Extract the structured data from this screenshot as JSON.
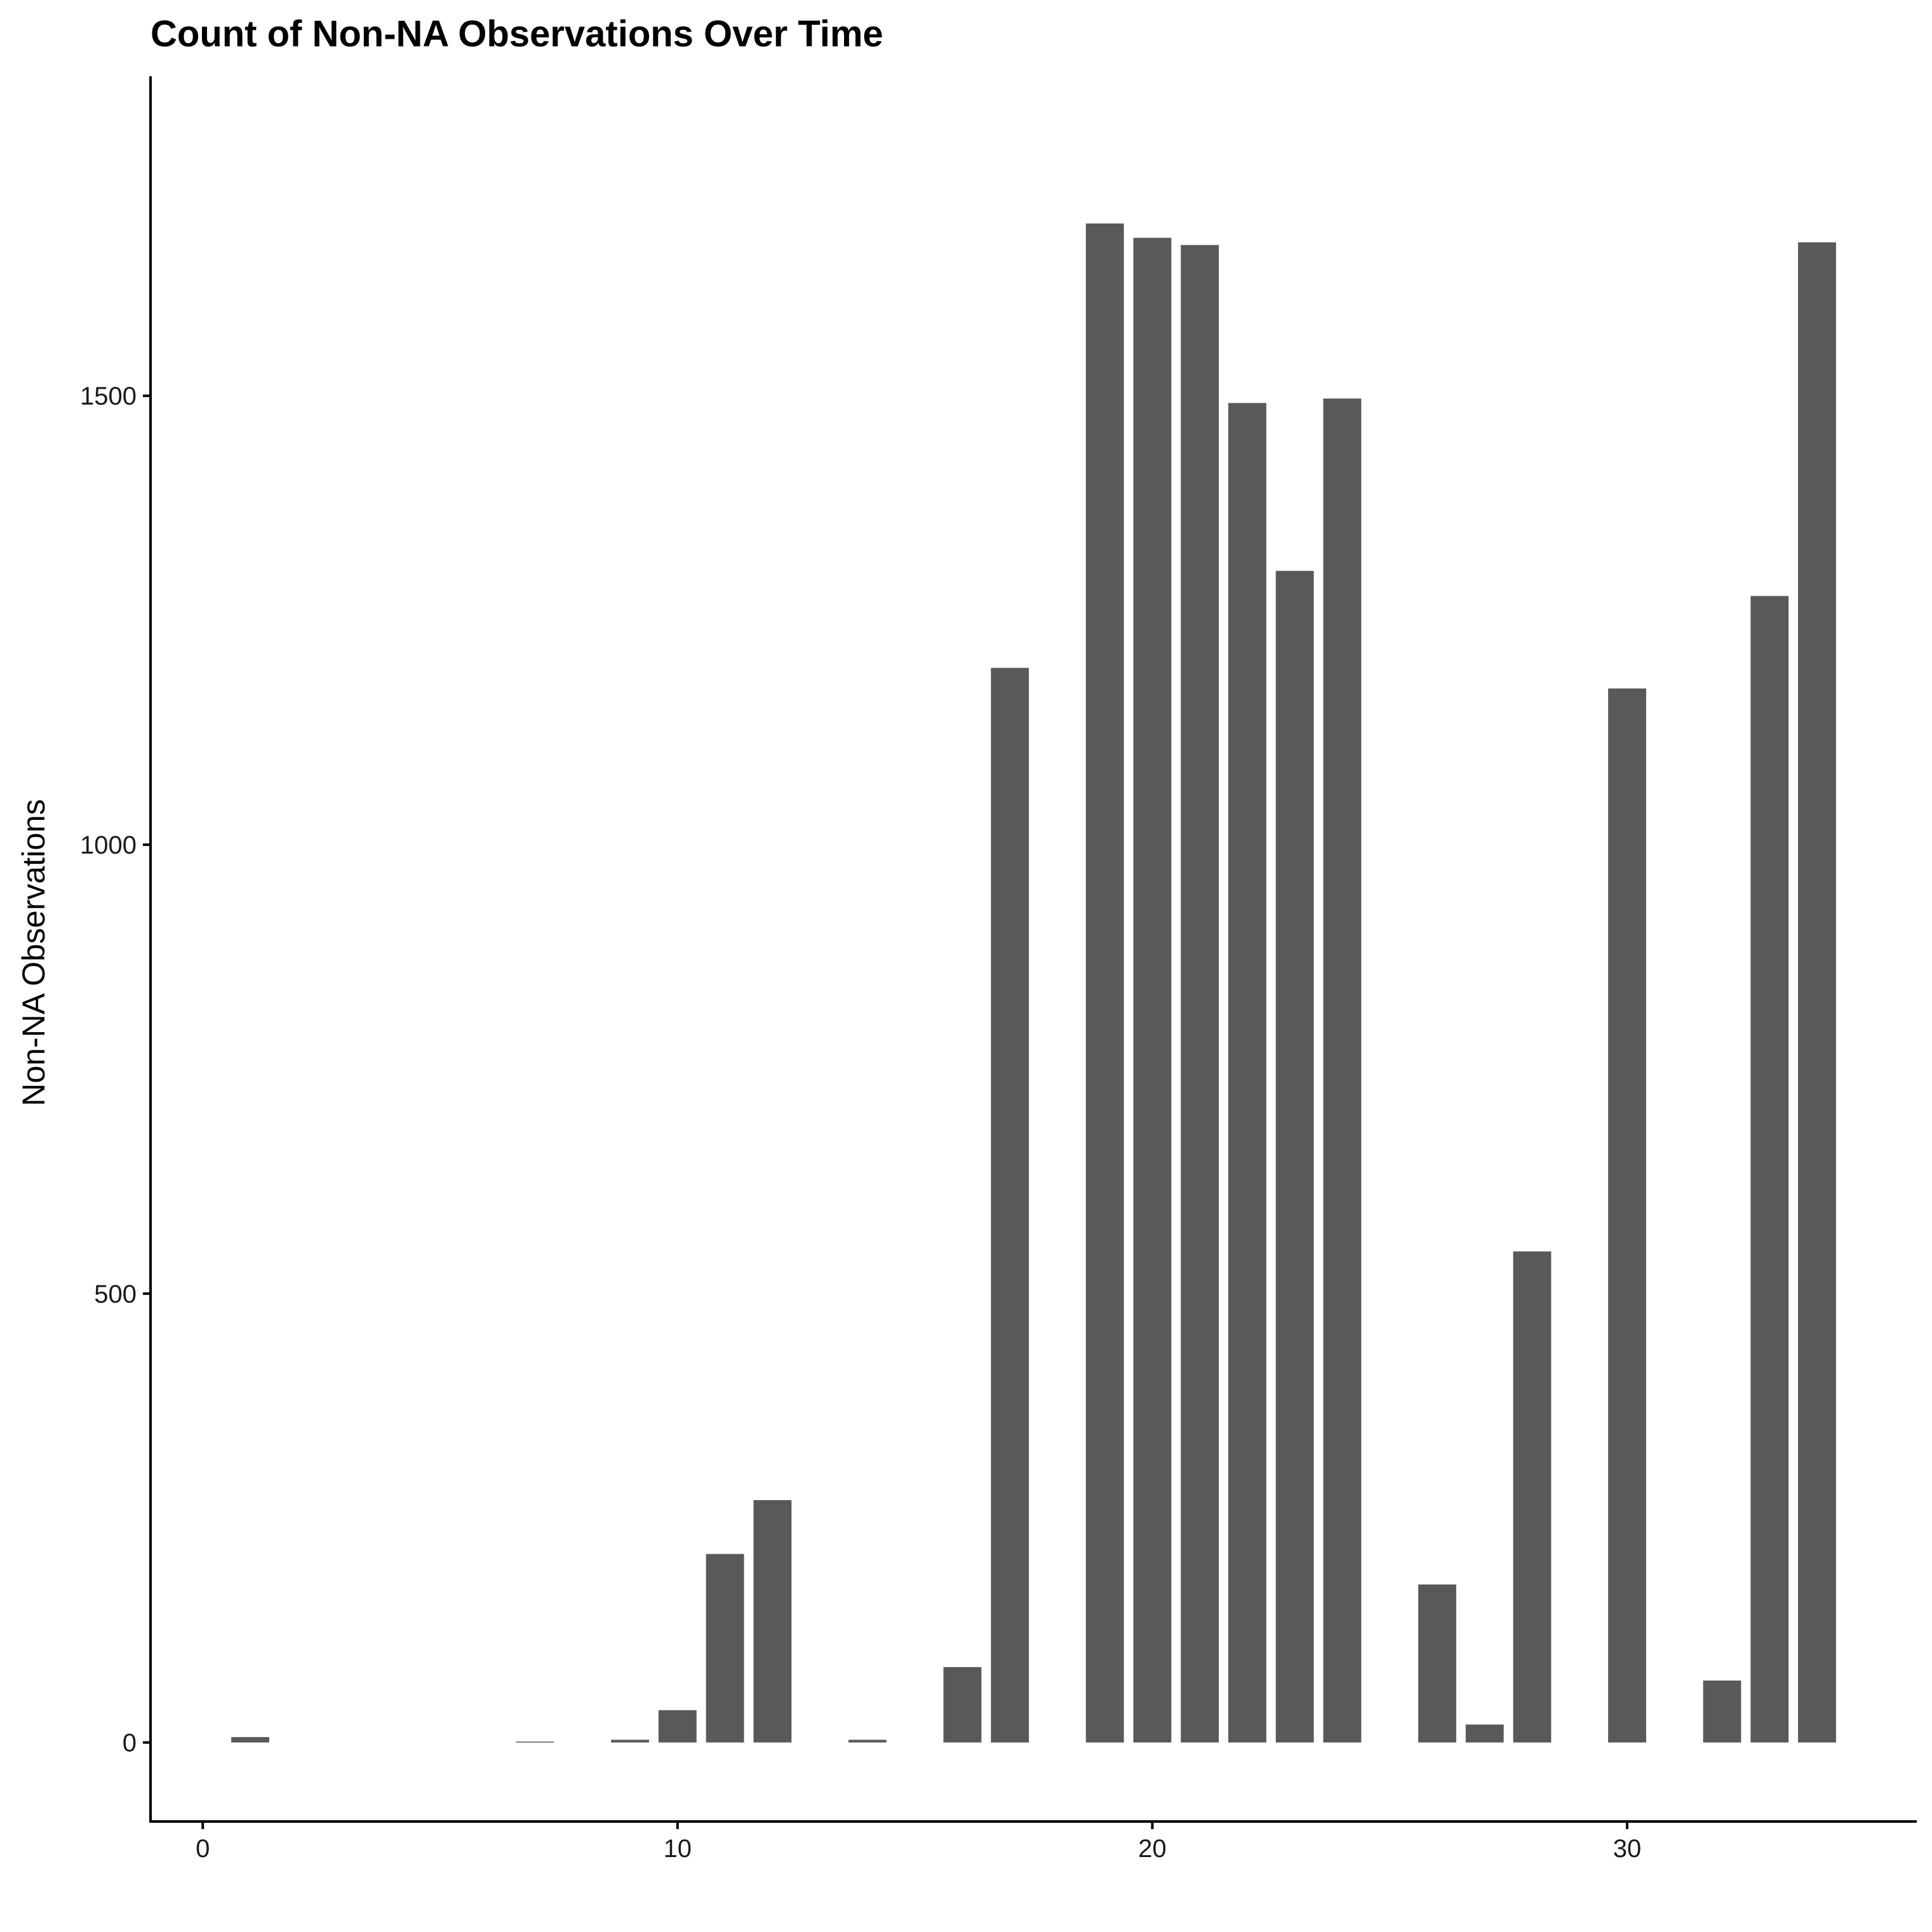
{
  "chart_data": {
    "type": "bar",
    "title": "Count of Non-NA Observations Over Time",
    "xlabel": "",
    "ylabel": "Non-NA Observations",
    "x": [
      1,
      7,
      9,
      10,
      11,
      12,
      14,
      16,
      17,
      19,
      20,
      21,
      22,
      23,
      24,
      26,
      27,
      28,
      30,
      32,
      33,
      34
    ],
    "values": [
      6,
      1,
      3,
      36,
      210,
      270,
      3,
      84,
      1197,
      1692,
      1676,
      1668,
      1492,
      1305,
      1497,
      176,
      20,
      547,
      1174,
      69,
      1277,
      1671
    ],
    "xlim": [
      -1.1,
      36.1
    ],
    "ylim": [
      -88,
      1856
    ],
    "xticks": [
      0,
      10,
      20,
      30
    ],
    "yticks": [
      0,
      500,
      1000,
      1500
    ],
    "grid": false,
    "legend": "none",
    "bar_color": "#595959"
  }
}
